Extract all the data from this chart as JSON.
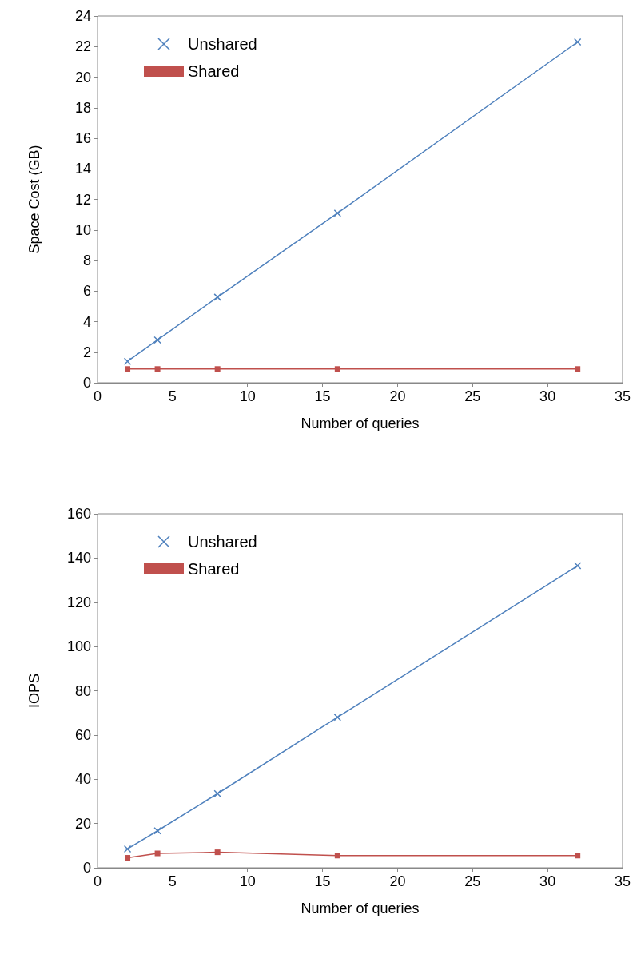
{
  "chart_data": [
    {
      "type": "line",
      "xlabel": "Number of queries",
      "ylabel": "Space Cost (GB)",
      "xlim": [
        0,
        35
      ],
      "xticks": [
        0,
        5,
        10,
        15,
        20,
        25,
        30,
        35
      ],
      "ylim": [
        0,
        24
      ],
      "yticks": [
        0,
        2,
        4,
        6,
        8,
        10,
        12,
        14,
        16,
        18,
        20,
        22,
        24
      ],
      "grid": false,
      "legend": "top left",
      "x": [
        2,
        4,
        8,
        16,
        32
      ],
      "series": [
        {
          "name": "Unshared",
          "color": "#4f81bd",
          "marker": "cross",
          "values": [
            1.4,
            2.8,
            5.6,
            11.1,
            22.3
          ]
        },
        {
          "name": "Shared",
          "color": "#c0504d",
          "marker": "square",
          "values": [
            0.9,
            0.9,
            0.9,
            0.9,
            0.9
          ]
        }
      ]
    },
    {
      "type": "line",
      "xlabel": "Number of queries",
      "ylabel": "IOPS",
      "xlim": [
        0,
        35
      ],
      "xticks": [
        0,
        5,
        10,
        15,
        20,
        25,
        30,
        35
      ],
      "ylim": [
        0,
        160
      ],
      "yticks": [
        0,
        20,
        40,
        60,
        80,
        100,
        120,
        140,
        160
      ],
      "grid": false,
      "legend": "top left",
      "x": [
        2,
        4,
        8,
        16,
        32
      ],
      "series": [
        {
          "name": "Unshared",
          "color": "#4f81bd",
          "marker": "cross",
          "values": [
            8.5,
            16.7,
            33.5,
            68,
            136.5
          ]
        },
        {
          "name": "Shared",
          "color": "#c0504d",
          "marker": "square",
          "values": [
            4.5,
            6.5,
            7,
            5.5,
            5.5
          ]
        }
      ]
    }
  ]
}
